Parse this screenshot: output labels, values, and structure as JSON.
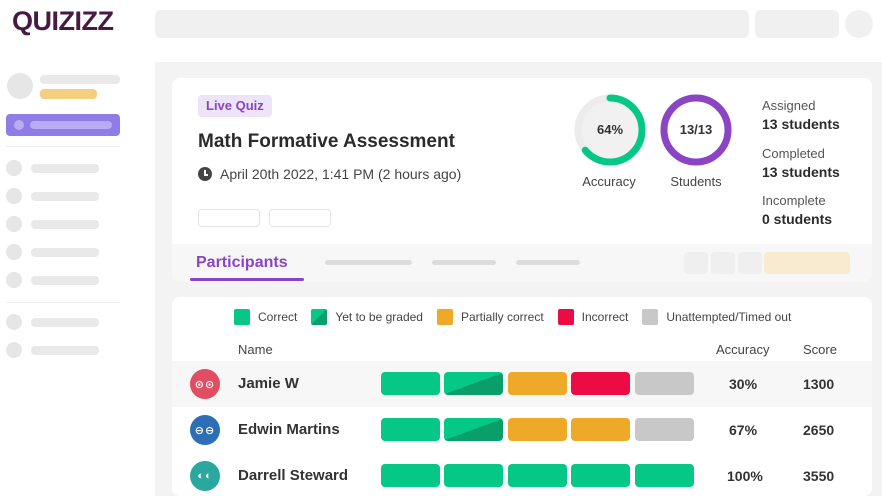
{
  "app": {
    "logo_text": "QUIZIZZ"
  },
  "quiz": {
    "badge": "Live Quiz",
    "title": "Math Formative Assessment",
    "date": "April 20th 2022, 1:41 PM (2 hours ago)"
  },
  "summary": {
    "accuracy": {
      "value": "64%",
      "fraction": 0.64,
      "label": "Accuracy"
    },
    "students": {
      "value": "13/13",
      "fraction": 1.0,
      "label": "Students"
    },
    "stats": [
      {
        "label": "Assigned",
        "value": "13 students"
      },
      {
        "label": "Completed",
        "value": "13 students"
      },
      {
        "label": "Incomplete",
        "value": "0 students"
      }
    ]
  },
  "tabs": {
    "active": "Participants"
  },
  "legend": [
    {
      "label": "Correct",
      "color": "#05c786"
    },
    {
      "label": "Yet to be graded",
      "color": "#0a9e6a"
    },
    {
      "label": "Partially correct",
      "color": "#efa929"
    },
    {
      "label": "Incorrect",
      "color": "#ec0b43"
    },
    {
      "label": "Unattempted/Timed out",
      "color": "#c8c8c8"
    }
  ],
  "table": {
    "headers": {
      "name": "Name",
      "accuracy": "Accuracy",
      "score": "Score"
    },
    "rows": [
      {
        "name": "Jamie W",
        "avatar_color": "#e14d62",
        "avatar_glyph": "⊙⊙",
        "accuracy": "30%",
        "score": "1300",
        "answers": [
          "correct",
          "graded",
          "partial",
          "incorrect",
          "unattempted"
        ]
      },
      {
        "name": "Edwin Martins",
        "avatar_color": "#2d6fb6",
        "avatar_glyph": "⊖⊖",
        "accuracy": "67%",
        "score": "2650",
        "answers": [
          "correct",
          "graded",
          "partial",
          "partial",
          "unattempted"
        ]
      },
      {
        "name": "Darrell Steward",
        "avatar_color": "#2aa8a0",
        "avatar_glyph": "◐◐",
        "accuracy": "100%",
        "score": "3550",
        "answers": [
          "correct",
          "correct",
          "correct",
          "correct",
          "correct"
        ]
      }
    ]
  },
  "colors": {
    "brand": "#461a42",
    "accent": "#8b44c4",
    "accuracy_ring": "#05c786",
    "correct": "#05c786",
    "graded_a": "#05c786",
    "graded_b": "#0a9e6a",
    "partial": "#efa929",
    "incorrect": "#ec0b43",
    "unattempted": "#c8c8c8"
  }
}
